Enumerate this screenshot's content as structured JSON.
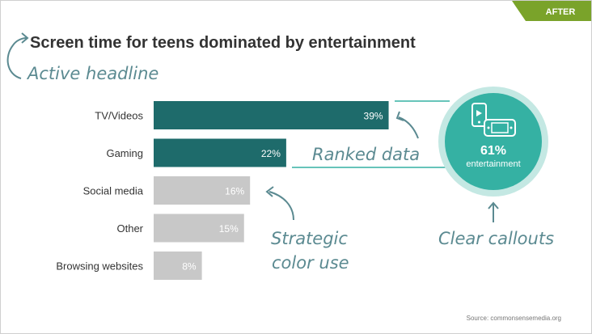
{
  "tag": {
    "label": "AFTER"
  },
  "headline": "Screen time for teens dominated by entertainment",
  "annotations": {
    "headline": "Active headline",
    "ranked": "Ranked data",
    "color_line1": "Strategic",
    "color_line2": "color use",
    "callouts": "Clear callouts"
  },
  "callout": {
    "value": "61%",
    "label": "entertainment",
    "icons": [
      "phone-icon",
      "game-console-icon"
    ]
  },
  "source": "Source: commonsensemedia.org",
  "colors": {
    "highlight": "#1e6b6b",
    "muted": "#c8c8c8",
    "accent": "#35b1a3",
    "annotation": "#5b8a91",
    "tag": "#7aa32a",
    "text": "#333333"
  },
  "chart_data": {
    "type": "bar",
    "orientation": "horizontal",
    "title": "Screen time for teens dominated by entertainment",
    "categories": [
      "TV/Videos",
      "Gaming",
      "Social media",
      "Other",
      "Browsing websites"
    ],
    "values": [
      39,
      22,
      16,
      15,
      8
    ],
    "data_labels": [
      "39%",
      "22%",
      "16%",
      "15%",
      "8%"
    ],
    "highlighted": [
      true,
      true,
      false,
      false,
      false
    ],
    "unit": "%",
    "xlim": [
      0,
      40
    ],
    "grid": false,
    "legend": "none"
  }
}
